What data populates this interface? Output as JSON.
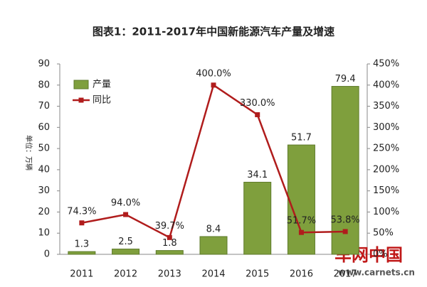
{
  "chart_data": {
    "type": "bar",
    "title": "图表1：2011-2017年中国新能源汽车产量及增速",
    "y_label": "单位：万辆",
    "categories": [
      "2011",
      "2012",
      "2013",
      "2014",
      "2015",
      "2016",
      "2017"
    ],
    "series": [
      {
        "name": "产量",
        "type": "bar",
        "color": "#7f9f3d",
        "values": [
          1.3,
          2.5,
          1.8,
          8.4,
          34.1,
          51.7,
          79.4
        ]
      },
      {
        "name": "同比",
        "type": "line",
        "axis": "y2",
        "color": "#b01c1c",
        "values": [
          74.3,
          94.0,
          39.7,
          400.0,
          330.0,
          51.7,
          53.8
        ],
        "value_labels": [
          "74.3%",
          "94.0%",
          "39.7%",
          "400.0%",
          "330.0%",
          "51.7%",
          "53.8%"
        ]
      }
    ],
    "ylim": [
      0,
      90
    ],
    "yticks": [
      0,
      10,
      20,
      30,
      40,
      50,
      60,
      70,
      80,
      90
    ],
    "y2lim": [
      0,
      450
    ],
    "y2ticks": [
      {
        "value": 0,
        "label": "0%"
      },
      {
        "value": 50,
        "label": "50%"
      },
      {
        "value": 100,
        "label": "100%"
      },
      {
        "value": 150,
        "label": "150%"
      },
      {
        "value": 200,
        "label": "200%"
      },
      {
        "value": 250,
        "label": "250%"
      },
      {
        "value": 300,
        "label": "300%"
      },
      {
        "value": 350,
        "label": "350%"
      },
      {
        "value": 400,
        "label": "400%"
      },
      {
        "value": 450,
        "label": "450%"
      }
    ],
    "legend": "top-left"
  },
  "watermark": {
    "name": "车网中国",
    "url": "www.carnets.cn"
  }
}
